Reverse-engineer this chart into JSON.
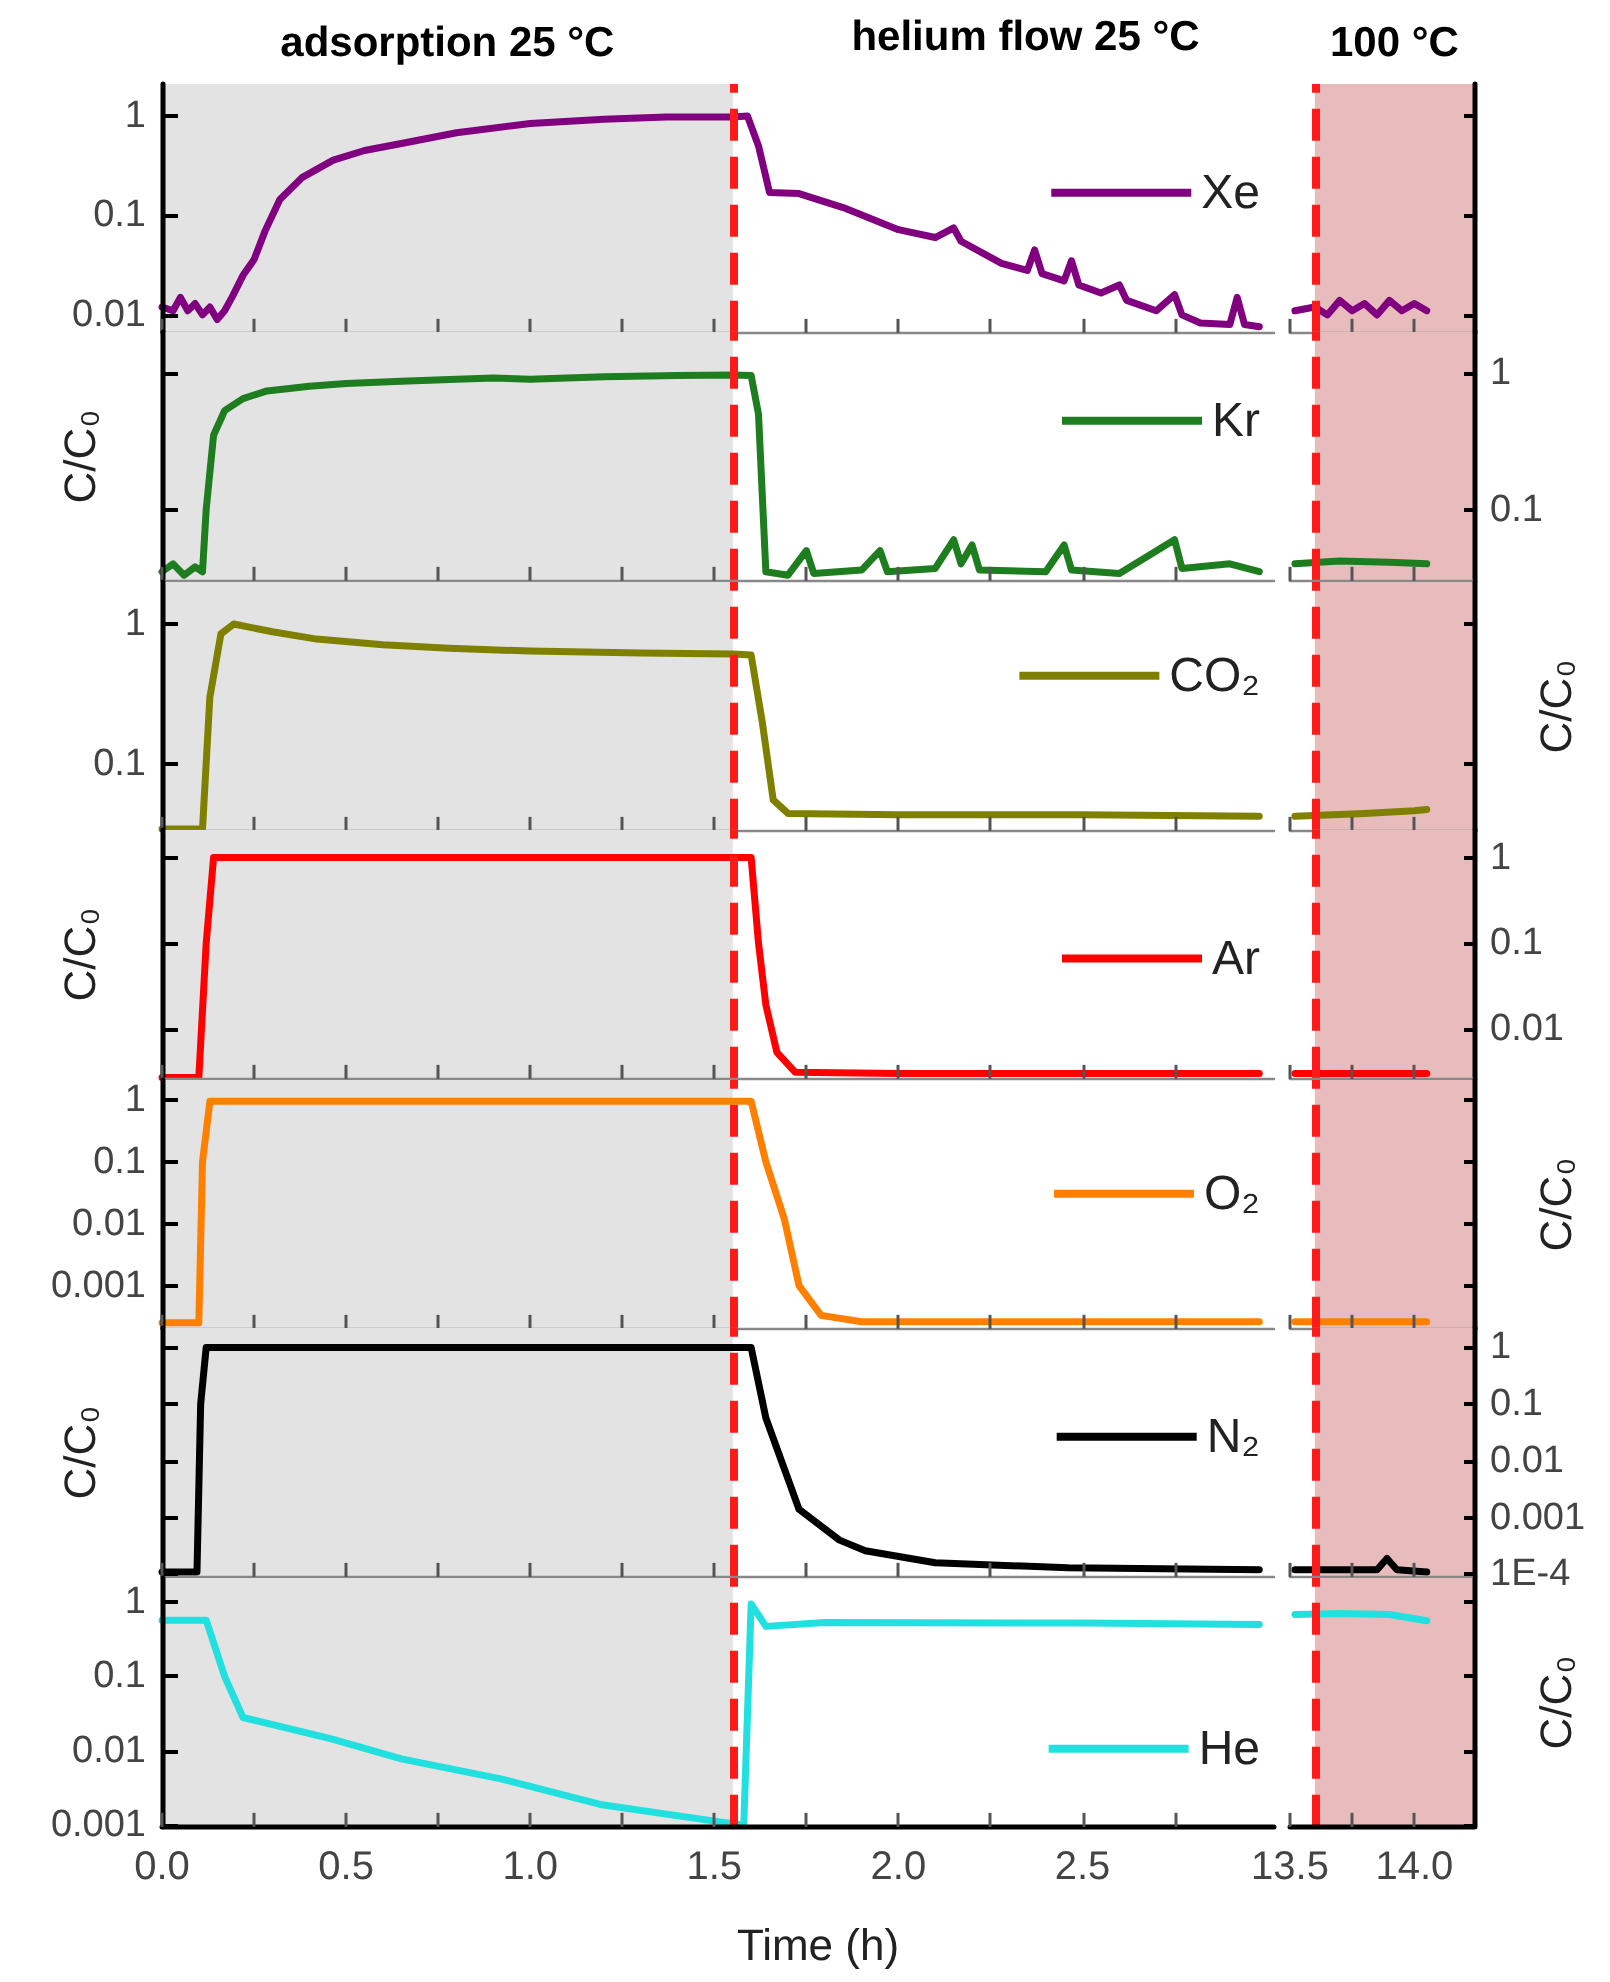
{
  "chart_data": [
    {
      "type": "line",
      "log": true,
      "grid": false,
      "marker": "none",
      "legend": "right",
      "tick_labels": "y",
      "series": [
        {
          "name": "Xe",
          "color": "#800080",
          "x": [
            0,
            0.03,
            0.05,
            0.07,
            0.09,
            0.11,
            0.13,
            0.15,
            0.17,
            0.19,
            0.22,
            0.25,
            0.28,
            0.32,
            0.38,
            0.465,
            0.55,
            0.65,
            0.8,
            1.0,
            1.2,
            1.37,
            1.55,
            1.59,
            1.62,
            1.65,
            1.73,
            1.85,
            2.0,
            2.1,
            2.15,
            2.17,
            2.28,
            2.35,
            2.37,
            2.39,
            2.45,
            2.47,
            2.49,
            2.55,
            2.6,
            2.62,
            2.7,
            2.75,
            2.77,
            2.82,
            2.9,
            2.92,
            2.94,
            2.98
          ],
          "values": [
            0.012,
            0.011,
            0.015,
            0.011,
            0.013,
            0.01,
            0.012,
            0.009,
            0.011,
            0.015,
            0.025,
            0.036,
            0.07,
            0.145,
            0.24,
            0.36,
            0.45,
            0.53,
            0.68,
            0.84,
            0.93,
            0.98,
            0.98,
            1.0,
            0.5,
            0.17,
            0.166,
            0.12,
            0.072,
            0.06,
            0.075,
            0.055,
            0.033,
            0.028,
            0.045,
            0.026,
            0.022,
            0.035,
            0.02,
            0.0166,
            0.02,
            0.014,
            0.011,
            0.016,
            0.01,
            0.0083,
            0.008,
            0.015,
            0.008,
            0.0076
          ]
        }
      ],
      "xlim": [
        0,
        3.02
      ],
      "xticks": [
        0,
        0.25,
        0.5,
        0.75,
        1,
        1.25,
        1.5,
        1.75,
        2,
        2.25,
        2.5,
        2.75
      ],
      "ylim": [
        0.0066,
        2.1
      ],
      "yticks": [
        0.01,
        0.1,
        1
      ],
      "bands": [
        {
          "axis": "x",
          "from": 0,
          "to": 1.55,
          "label": "adsorption 25 °C",
          "color": "#e3e3e3"
        }
      ],
      "annotations": [
        "helium flow 25 °C"
      ],
      "ref_lines": [
        {
          "axis": "x",
          "value": 1.55,
          "color": "#ff1a1a",
          "line_style": "dashed"
        }
      ]
    },
    {
      "type": "line",
      "log": true,
      "grid": false,
      "marker": "none",
      "tick_labels": false,
      "series": [
        {
          "color": "#800080",
          "x": [
            13.52,
            13.6,
            13.65,
            13.7,
            13.75,
            13.8,
            13.85,
            13.9,
            13.95,
            14.0,
            14.05
          ],
          "values": [
            0.011,
            0.012,
            0.01,
            0.014,
            0.011,
            0.013,
            0.01,
            0.014,
            0.011,
            0.013,
            0.011
          ]
        }
      ],
      "xlim": [
        13.5,
        14.24
      ],
      "xticks": [
        13.5,
        13.75,
        14
      ],
      "ylim": [
        0.0066,
        2.1
      ],
      "yticks": [
        0.01,
        0.1,
        1
      ],
      "bands": [
        {
          "axis": "x",
          "from": 13.6,
          "to": 14.24,
          "label": "100 °C",
          "color": "#e8bcbc"
        }
      ],
      "ref_lines": [
        {
          "axis": "x",
          "value": 13.6,
          "color": "#ff1a1a",
          "line_style": "dashed"
        }
      ]
    },
    {
      "type": "line",
      "log": true,
      "grid": false,
      "marker": "none",
      "legend": "right",
      "tick_labels": false,
      "ylabel": "C/C₀",
      "series": [
        {
          "name": "Kr",
          "color": "#1e7d1e",
          "x": [
            0,
            0.03,
            0.06,
            0.09,
            0.11,
            0.12,
            0.14,
            0.17,
            0.22,
            0.285,
            0.4,
            0.5,
            0.65,
            0.8,
            0.9,
            1.0,
            1.2,
            1.4,
            1.55,
            1.6,
            1.62,
            1.64,
            1.7,
            1.75,
            1.77,
            1.9,
            1.95,
            1.97,
            2.1,
            2.15,
            2.17,
            2.2,
            2.22,
            2.4,
            2.45,
            2.47,
            2.6,
            2.75,
            2.77,
            2.9,
            2.98
          ],
          "values": [
            0.035,
            0.04,
            0.033,
            0.038,
            0.035,
            0.1,
            0.35,
            0.53,
            0.65,
            0.74,
            0.8,
            0.84,
            0.87,
            0.9,
            0.92,
            0.9,
            0.94,
            0.96,
            0.97,
            0.96,
            0.5,
            0.035,
            0.033,
            0.05,
            0.034,
            0.036,
            0.05,
            0.035,
            0.037,
            0.06,
            0.04,
            0.055,
            0.036,
            0.035,
            0.055,
            0.036,
            0.034,
            0.06,
            0.037,
            0.04,
            0.035
          ]
        }
      ],
      "xlim": [
        0,
        3.02
      ],
      "xticks": [
        0,
        0.25,
        0.5,
        0.75,
        1,
        1.25,
        1.5,
        1.75,
        2,
        2.25,
        2.5,
        2.75
      ],
      "ylim": [
        0.03,
        2
      ],
      "yticks": [
        0.1,
        1
      ],
      "bands": [
        {
          "axis": "x",
          "from": 0,
          "to": 1.55,
          "color": "#e3e3e3"
        }
      ],
      "ref_lines": [
        {
          "axis": "x",
          "value": 1.55,
          "color": "#ff1a1a",
          "line_style": "dashed"
        }
      ]
    },
    {
      "type": "line",
      "log": true,
      "grid": false,
      "marker": "none",
      "tick_labels": "y",
      "series": [
        {
          "color": "#1e7d1e",
          "x": [
            13.52,
            13.7,
            13.9,
            14.05
          ],
          "values": [
            0.04,
            0.042,
            0.041,
            0.04
          ]
        }
      ],
      "xlim": [
        13.5,
        14.24
      ],
      "xticks": [
        13.5,
        13.75,
        14
      ],
      "ylim": [
        0.03,
        2
      ],
      "yticks": [
        0.1,
        1
      ],
      "bands": [
        {
          "axis": "x",
          "from": 13.6,
          "to": 14.24,
          "color": "#e8bcbc"
        }
      ],
      "ref_lines": [
        {
          "axis": "x",
          "value": 13.6,
          "color": "#ff1a1a",
          "line_style": "dashed"
        }
      ]
    },
    {
      "type": "line",
      "log": true,
      "grid": false,
      "marker": "none",
      "legend": "right",
      "tick_labels": "y",
      "series": [
        {
          "name": "CO₂",
          "color": "#808000",
          "x": [
            0,
            0.11,
            0.13,
            0.16,
            0.195,
            0.3,
            0.42,
            0.6,
            0.78,
            1.0,
            1.3,
            1.55,
            1.6,
            1.63,
            1.66,
            1.7,
            2.0,
            2.5,
            2.98
          ],
          "values": [
            0.034,
            0.034,
            0.3,
            0.85,
            1.0,
            0.88,
            0.78,
            0.71,
            0.67,
            0.64,
            0.62,
            0.61,
            0.6,
            0.2,
            0.055,
            0.044,
            0.043,
            0.043,
            0.042
          ]
        }
      ],
      "xlim": [
        0,
        3.02
      ],
      "xticks": [
        0,
        0.25,
        0.5,
        0.75,
        1,
        1.25,
        1.5,
        1.75,
        2,
        2.25,
        2.5,
        2.75
      ],
      "ylim": [
        0.033,
        2
      ],
      "yticks": [
        0.1,
        1
      ],
      "bands": [
        {
          "axis": "x",
          "from": 0,
          "to": 1.55,
          "color": "#e3e3e3"
        }
      ],
      "ref_lines": [
        {
          "axis": "x",
          "value": 1.55,
          "color": "#ff1a1a",
          "line_style": "dashed"
        }
      ]
    },
    {
      "type": "line",
      "log": true,
      "grid": false,
      "marker": "none",
      "tick_labels": false,
      "ylabel": "C/C₀",
      "series": [
        {
          "color": "#808000",
          "x": [
            13.52,
            13.8,
            14.0,
            14.05
          ],
          "values": [
            0.042,
            0.044,
            0.046,
            0.047
          ]
        }
      ],
      "xlim": [
        13.5,
        14.24
      ],
      "xticks": [
        13.5,
        13.75,
        14
      ],
      "ylim": [
        0.033,
        2
      ],
      "yticks": [
        0.1,
        1
      ],
      "bands": [
        {
          "axis": "x",
          "from": 13.6,
          "to": 14.24,
          "color": "#e8bcbc"
        }
      ],
      "ref_lines": [
        {
          "axis": "x",
          "value": 13.6,
          "color": "#ff1a1a",
          "line_style": "dashed"
        }
      ]
    },
    {
      "type": "line",
      "log": true,
      "grid": false,
      "marker": "none",
      "legend": "right",
      "tick_labels": false,
      "ylabel": "C/C₀",
      "series": [
        {
          "name": "Ar",
          "color": "#ff0000",
          "x": [
            0,
            0.1,
            0.12,
            0.14,
            1.6,
            1.62,
            1.64,
            1.67,
            1.72,
            2.0,
            2.5,
            2.98
          ],
          "values": [
            0.0027,
            0.0027,
            0.1,
            1.0,
            1.0,
            0.1,
            0.019,
            0.0053,
            0.0031,
            0.003,
            0.003,
            0.003
          ]
        }
      ],
      "xlim": [
        0,
        3.02
      ],
      "xticks": [
        0,
        0.25,
        0.5,
        0.75,
        1,
        1.25,
        1.5,
        1.75,
        2,
        2.25,
        2.5,
        2.75
      ],
      "ylim": [
        0.0026,
        2.1
      ],
      "yticks": [
        0.01,
        0.1,
        1
      ],
      "bands": [
        {
          "axis": "x",
          "from": 0,
          "to": 1.55,
          "color": "#e3e3e3"
        }
      ],
      "ref_lines": [
        {
          "axis": "x",
          "value": 1.55,
          "color": "#ff1a1a",
          "line_style": "dashed"
        }
      ]
    },
    {
      "type": "line",
      "log": true,
      "grid": false,
      "marker": "none",
      "tick_labels": "y",
      "series": [
        {
          "color": "#ff0000",
          "x": [
            13.52,
            14.05
          ],
          "values": [
            0.003,
            0.003
          ]
        }
      ],
      "xlim": [
        13.5,
        14.24
      ],
      "xticks": [
        13.5,
        13.75,
        14
      ],
      "ylim": [
        0.0026,
        2.1
      ],
      "yticks": [
        0.01,
        0.1,
        1
      ],
      "bands": [
        {
          "axis": "x",
          "from": 13.6,
          "to": 14.24,
          "color": "#e8bcbc"
        }
      ],
      "ref_lines": [
        {
          "axis": "x",
          "value": 13.6,
          "color": "#ff1a1a",
          "line_style": "dashed"
        }
      ]
    },
    {
      "type": "line",
      "log": true,
      "grid": false,
      "marker": "none",
      "legend": "right",
      "tick_labels": "y",
      "series": [
        {
          "name": "O₂",
          "color": "#ff8000",
          "x": [
            0,
            0.1,
            0.11,
            0.13,
            1.6,
            1.64,
            1.69,
            1.73,
            1.79,
            1.9,
            2.98
          ],
          "values": [
            0.00025,
            0.00025,
            0.1,
            0.95,
            0.95,
            0.1,
            0.012,
            0.001,
            0.00033,
            0.00026,
            0.00026
          ]
        }
      ],
      "xlim": [
        0,
        3.02
      ],
      "xticks": [
        0,
        0.25,
        0.5,
        0.75,
        1,
        1.25,
        1.5,
        1.75,
        2,
        2.25,
        2.5,
        2.75
      ],
      "ylim": [
        0.0002,
        2.1
      ],
      "yticks": [
        0.001,
        0.01,
        0.1,
        1
      ],
      "bands": [
        {
          "axis": "x",
          "from": 0,
          "to": 1.55,
          "color": "#e3e3e3"
        }
      ],
      "ref_lines": [
        {
          "axis": "x",
          "value": 1.55,
          "color": "#ff1a1a",
          "line_style": "dashed"
        }
      ]
    },
    {
      "type": "line",
      "log": true,
      "grid": false,
      "marker": "none",
      "tick_labels": false,
      "ylabel": "C/C₀",
      "series": [
        {
          "color": "#ff8000",
          "x": [
            13.52,
            14.05
          ],
          "values": [
            0.00026,
            0.00026
          ]
        }
      ],
      "xlim": [
        13.5,
        14.24
      ],
      "xticks": [
        13.5,
        13.75,
        14
      ],
      "ylim": [
        0.0002,
        2.1
      ],
      "yticks": [
        0.001,
        0.01,
        0.1,
        1
      ],
      "bands": [
        {
          "axis": "x",
          "from": 13.6,
          "to": 14.24,
          "color": "#e8bcbc"
        }
      ],
      "ref_lines": [
        {
          "axis": "x",
          "value": 13.6,
          "color": "#ff1a1a",
          "line_style": "dashed"
        }
      ]
    },
    {
      "type": "line",
      "log": true,
      "grid": false,
      "marker": "none",
      "legend": "right",
      "tick_labels": false,
      "ylabel": "C/C₀",
      "series": [
        {
          "name": "N₂",
          "color": "#000000",
          "x": [
            0,
            0.095,
            0.105,
            0.12,
            1.6,
            1.64,
            1.73,
            1.84,
            1.91,
            2.1,
            2.46,
            2.98
          ],
          "values": [
            0.00011,
            0.00011,
            0.1,
            1.0,
            1.0,
            0.057,
            0.0014,
            0.0004,
            0.00026,
            0.00016,
            0.00013,
            0.00012
          ]
        }
      ],
      "xlim": [
        0,
        3.02
      ],
      "xticks": [
        0,
        0.25,
        0.5,
        0.75,
        1,
        1.25,
        1.5,
        1.75,
        2,
        2.25,
        2.5,
        2.75
      ],
      "ylim": [
        9e-05,
        2.2
      ],
      "yticks": [
        0.0001,
        0.001,
        0.01,
        0.1,
        1
      ],
      "bands": [
        {
          "axis": "x",
          "from": 0,
          "to": 1.55,
          "color": "#e3e3e3"
        }
      ],
      "ref_lines": [
        {
          "axis": "x",
          "value": 1.55,
          "color": "#ff1a1a",
          "line_style": "dashed"
        }
      ]
    },
    {
      "type": "line",
      "log": true,
      "grid": false,
      "marker": "none",
      "tick_labels": "y",
      "series": [
        {
          "color": "#000000",
          "x": [
            13.52,
            13.85,
            13.89,
            13.93,
            14.05
          ],
          "values": [
            0.00012,
            0.00012,
            0.00019,
            0.00012,
            0.00011
          ]
        }
      ],
      "xlim": [
        13.5,
        14.24
      ],
      "xticks": [
        13.5,
        13.75,
        14
      ],
      "ylim": [
        9e-05,
        2.2
      ],
      "yticks": [
        {
          "value": 0.0001,
          "label": "1E-4"
        },
        0.001,
        0.01,
        0.1,
        1
      ],
      "bands": [
        {
          "axis": "x",
          "from": 13.6,
          "to": 14.24,
          "color": "#e8bcbc"
        }
      ],
      "ref_lines": [
        {
          "axis": "x",
          "value": 13.6,
          "color": "#ff1a1a",
          "line_style": "dashed"
        }
      ]
    },
    {
      "type": "line",
      "log": true,
      "grid": false,
      "marker": "none",
      "legend": "right",
      "xlabel": "Time (h)",
      "series": [
        {
          "name": "He",
          "color": "#22e0e0",
          "x": [
            0,
            0.12,
            0.17,
            0.22,
            0.46,
            0.65,
            0.92,
            1.19,
            1.52,
            1.58,
            1.6,
            1.64,
            1.8,
            2.5,
            2.98
          ],
          "values": [
            0.57,
            0.57,
            0.1,
            0.028,
            0.0145,
            0.0078,
            0.0042,
            0.0019,
            0.0011,
            0.001,
            0.94,
            0.47,
            0.53,
            0.52,
            0.5
          ]
        }
      ],
      "xlim": [
        0,
        3.02
      ],
      "xticks": [
        {
          "value": 0,
          "label": "0.0"
        },
        {
          "value": 0.25,
          "label": null
        },
        0.5,
        {
          "value": 0.75,
          "label": null
        },
        {
          "value": 1,
          "label": "1.0"
        },
        {
          "value": 1.25,
          "label": null
        },
        1.5,
        {
          "value": 1.75,
          "label": null
        },
        {
          "value": 2,
          "label": "2.0"
        },
        {
          "value": 2.25,
          "label": null
        },
        2.5,
        {
          "value": 2.75,
          "label": null
        }
      ],
      "ylim": [
        0.00095,
        2.1
      ],
      "yticks": [
        0.001,
        0.01,
        0.1,
        1
      ],
      "bands": [
        {
          "axis": "x",
          "from": 0,
          "to": 1.55,
          "color": "#e3e3e3"
        }
      ],
      "ref_lines": [
        {
          "axis": "x",
          "value": 1.55,
          "color": "#ff1a1a",
          "line_style": "dashed"
        }
      ]
    },
    {
      "type": "line",
      "log": true,
      "grid": false,
      "marker": "none",
      "tick_labels": "x",
      "ylabel": "C/C₀",
      "series": [
        {
          "color": "#22e0e0",
          "x": [
            13.52,
            13.7,
            13.9,
            14.05
          ],
          "values": [
            0.68,
            0.7,
            0.68,
            0.56
          ]
        }
      ],
      "xlim": [
        13.5,
        14.24
      ],
      "xticks": [
        13.5,
        {
          "value": 13.75,
          "label": null
        },
        {
          "value": 14,
          "label": "14.0"
        }
      ],
      "ylim": [
        0.00095,
        2.1
      ],
      "yticks": [
        0.001,
        0.01,
        0.1,
        1
      ],
      "bands": [
        {
          "axis": "x",
          "from": 13.6,
          "to": 14.24,
          "color": "#e8bcbc"
        }
      ],
      "ref_lines": [
        {
          "axis": "x",
          "value": 13.6,
          "color": "#ff1a1a",
          "line_style": "dashed"
        }
      ]
    }
  ]
}
